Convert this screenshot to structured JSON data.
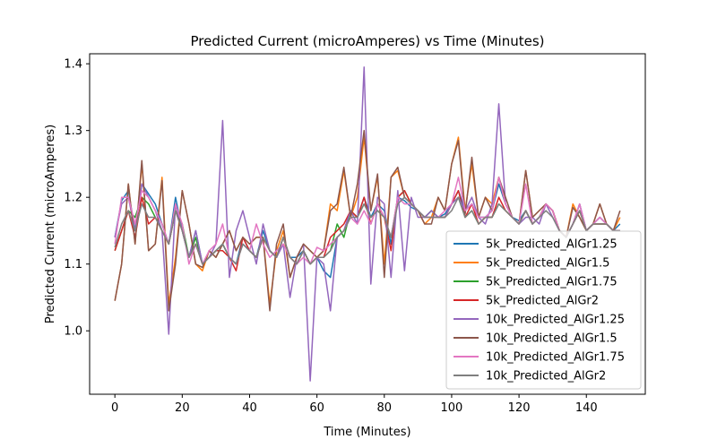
{
  "chart_data": {
    "type": "line",
    "title": "Predicted Current (microAmperes) vs Time (Minutes)",
    "xlabel": "Time (Minutes)",
    "ylabel": "Predicted Current (microAmperes)",
    "xlim": [
      -7.5,
      157.5
    ],
    "ylim": [
      0.905,
      1.415
    ],
    "xticks": [
      0,
      20,
      40,
      60,
      80,
      100,
      120,
      140
    ],
    "yticks": [
      1.0,
      1.1,
      1.2,
      1.3,
      1.4
    ],
    "grid": false,
    "legend": "lower-right",
    "x": [
      0,
      2,
      4,
      6,
      8,
      10,
      12,
      14,
      16,
      18,
      20,
      22,
      24,
      26,
      28,
      30,
      32,
      34,
      36,
      38,
      40,
      42,
      44,
      46,
      48,
      50,
      52,
      54,
      56,
      58,
      60,
      62,
      64,
      66,
      68,
      70,
      72,
      74,
      76,
      78,
      80,
      82,
      84,
      86,
      88,
      90,
      92,
      94,
      96,
      98,
      100,
      102,
      104,
      106,
      108,
      110,
      112,
      114,
      116,
      118,
      120,
      122,
      124,
      126,
      128,
      130,
      132,
      134,
      136,
      138,
      140,
      142,
      144,
      146,
      148,
      150
    ],
    "series": [
      {
        "name": "5k_Predicted_AlGr1.25",
        "color": "#1f77b4",
        "values": [
          1.14,
          1.195,
          1.21,
          1.15,
          1.22,
          1.205,
          1.19,
          1.16,
          1.13,
          1.2,
          1.15,
          1.11,
          1.15,
          1.1,
          1.11,
          1.12,
          1.13,
          1.11,
          1.1,
          1.14,
          1.12,
          1.11,
          1.15,
          1.12,
          1.11,
          1.14,
          1.11,
          1.11,
          1.12,
          1.1,
          1.11,
          1.09,
          1.08,
          1.14,
          1.15,
          1.18,
          1.17,
          1.2,
          1.17,
          1.19,
          1.18,
          1.13,
          1.2,
          1.195,
          1.185,
          1.18,
          1.17,
          1.18,
          1.17,
          1.175,
          1.19,
          1.21,
          1.18,
          1.19,
          1.17,
          1.17,
          1.18,
          1.22,
          1.19,
          1.17,
          1.165,
          1.18,
          1.16,
          1.17,
          1.19,
          1.18,
          1.15,
          1.14,
          1.16,
          1.19,
          1.15,
          1.16,
          1.17,
          1.16,
          1.15,
          1.16
        ]
      },
      {
        "name": "5k_Predicted_AlGr1.5",
        "color": "#ff7f0e",
        "values": [
          1.045,
          1.1,
          1.22,
          1.13,
          1.25,
          1.12,
          1.13,
          1.23,
          1.04,
          1.11,
          1.21,
          1.16,
          1.1,
          1.09,
          1.12,
          1.11,
          1.13,
          1.15,
          1.12,
          1.14,
          1.13,
          1.14,
          1.14,
          1.04,
          1.12,
          1.15,
          1.08,
          1.11,
          1.13,
          1.12,
          1.11,
          1.12,
          1.19,
          1.18,
          1.24,
          1.17,
          1.2,
          1.29,
          1.18,
          1.23,
          1.1,
          1.23,
          1.24,
          1.2,
          1.19,
          1.18,
          1.16,
          1.17,
          1.2,
          1.18,
          1.25,
          1.29,
          1.18,
          1.25,
          1.17,
          1.2,
          1.19,
          1.23,
          1.19,
          1.17,
          1.16,
          1.24,
          1.17,
          1.18,
          1.19,
          1.18,
          1.15,
          1.14,
          1.19,
          1.17,
          1.15,
          1.16,
          1.19,
          1.16,
          1.15,
          1.17
        ]
      },
      {
        "name": "5k_Predicted_AlGr1.75",
        "color": "#2ca02c",
        "values": [
          1.12,
          1.15,
          1.18,
          1.17,
          1.2,
          1.19,
          1.17,
          1.15,
          1.13,
          1.18,
          1.16,
          1.11,
          1.14,
          1.1,
          1.11,
          1.12,
          1.13,
          1.11,
          1.1,
          1.13,
          1.12,
          1.11,
          1.14,
          1.12,
          1.11,
          1.14,
          1.11,
          1.1,
          1.12,
          1.1,
          1.11,
          1.11,
          1.12,
          1.16,
          1.14,
          1.18,
          1.17,
          1.19,
          1.17,
          1.18,
          1.17,
          1.14,
          1.2,
          1.21,
          1.19,
          1.18,
          1.17,
          1.18,
          1.17,
          1.17,
          1.19,
          1.2,
          1.17,
          1.18,
          1.16,
          1.17,
          1.17,
          1.19,
          1.18,
          1.17,
          1.16,
          1.18,
          1.16,
          1.17,
          1.19,
          1.18,
          1.15,
          1.14,
          1.16,
          1.18,
          1.15,
          1.16,
          1.16,
          1.16,
          1.15,
          1.15
        ]
      },
      {
        "name": "5k_Predicted_AlGr2",
        "color": "#d62728",
        "values": [
          1.12,
          1.15,
          1.18,
          1.14,
          1.2,
          1.16,
          1.17,
          1.15,
          1.13,
          1.18,
          1.15,
          1.11,
          1.13,
          1.1,
          1.11,
          1.12,
          1.12,
          1.11,
          1.09,
          1.14,
          1.12,
          1.11,
          1.14,
          1.12,
          1.11,
          1.14,
          1.11,
          1.1,
          1.12,
          1.1,
          1.11,
          1.11,
          1.14,
          1.15,
          1.16,
          1.18,
          1.17,
          1.2,
          1.16,
          1.19,
          1.17,
          1.12,
          1.2,
          1.21,
          1.19,
          1.18,
          1.17,
          1.17,
          1.17,
          1.17,
          1.19,
          1.21,
          1.17,
          1.19,
          1.16,
          1.17,
          1.17,
          1.2,
          1.18,
          1.17,
          1.16,
          1.18,
          1.16,
          1.17,
          1.19,
          1.18,
          1.15,
          1.14,
          1.16,
          1.18,
          1.15,
          1.16,
          1.16,
          1.16,
          1.15,
          1.15
        ]
      },
      {
        "name": "10k_Predicted_AlGr1.25",
        "color": "#9467bd",
        "values": [
          1.14,
          1.19,
          1.2,
          1.15,
          1.22,
          1.2,
          1.18,
          1.15,
          0.995,
          1.19,
          1.15,
          1.11,
          1.15,
          1.1,
          1.11,
          1.13,
          1.315,
          1.08,
          1.15,
          1.18,
          1.14,
          1.1,
          1.16,
          1.12,
          1.11,
          1.13,
          1.05,
          1.11,
          1.13,
          0.925,
          1.11,
          1.1,
          1.03,
          1.14,
          1.15,
          1.18,
          1.16,
          1.395,
          1.07,
          1.2,
          1.19,
          1.08,
          1.21,
          1.09,
          1.2,
          1.17,
          1.17,
          1.18,
          1.17,
          1.17,
          1.19,
          1.2,
          1.18,
          1.2,
          1.17,
          1.16,
          1.19,
          1.34,
          1.19,
          1.17,
          1.16,
          1.17,
          1.17,
          1.16,
          1.19,
          1.17,
          1.15,
          1.14,
          1.16,
          1.19,
          1.15,
          1.16,
          1.17,
          1.16,
          1.15,
          1.15
        ]
      },
      {
        "name": "10k_Predicted_AlGr1.5",
        "color": "#8c564b",
        "values": [
          1.045,
          1.1,
          1.22,
          1.13,
          1.255,
          1.12,
          1.13,
          1.225,
          1.03,
          1.1,
          1.21,
          1.16,
          1.1,
          1.095,
          1.12,
          1.11,
          1.13,
          1.15,
          1.12,
          1.14,
          1.13,
          1.14,
          1.14,
          1.03,
          1.13,
          1.16,
          1.08,
          1.11,
          1.13,
          1.12,
          1.11,
          1.12,
          1.18,
          1.19,
          1.245,
          1.17,
          1.22,
          1.3,
          1.18,
          1.235,
          1.08,
          1.23,
          1.245,
          1.2,
          1.19,
          1.18,
          1.16,
          1.16,
          1.2,
          1.18,
          1.25,
          1.285,
          1.175,
          1.26,
          1.17,
          1.2,
          1.18,
          1.23,
          1.2,
          1.17,
          1.16,
          1.24,
          1.17,
          1.18,
          1.19,
          1.18,
          1.15,
          1.14,
          1.185,
          1.17,
          1.15,
          1.16,
          1.19,
          1.16,
          1.15,
          1.18
        ]
      },
      {
        "name": "10k_Predicted_AlGr1.75",
        "color": "#e377c2",
        "values": [
          1.13,
          1.2,
          1.2,
          1.16,
          1.21,
          1.2,
          1.18,
          1.16,
          1.13,
          1.19,
          1.16,
          1.1,
          1.13,
          1.1,
          1.12,
          1.13,
          1.16,
          1.11,
          1.1,
          1.13,
          1.12,
          1.16,
          1.13,
          1.11,
          1.12,
          1.13,
          1.11,
          1.1,
          1.11,
          1.1,
          1.125,
          1.12,
          1.13,
          1.14,
          1.15,
          1.17,
          1.16,
          1.18,
          1.16,
          1.19,
          1.17,
          1.14,
          1.2,
          1.19,
          1.19,
          1.18,
          1.17,
          1.17,
          1.17,
          1.18,
          1.19,
          1.23,
          1.18,
          1.19,
          1.17,
          1.17,
          1.18,
          1.23,
          1.19,
          1.17,
          1.16,
          1.22,
          1.16,
          1.17,
          1.19,
          1.18,
          1.15,
          1.14,
          1.16,
          1.19,
          1.15,
          1.16,
          1.17,
          1.16,
          1.15,
          1.15
        ]
      },
      {
        "name": "10k_Predicted_AlGr2",
        "color": "#7f7f7f",
        "values": [
          1.125,
          1.16,
          1.18,
          1.15,
          1.19,
          1.17,
          1.17,
          1.15,
          1.13,
          1.18,
          1.15,
          1.11,
          1.13,
          1.1,
          1.11,
          1.12,
          1.13,
          1.11,
          1.1,
          1.13,
          1.12,
          1.11,
          1.14,
          1.12,
          1.11,
          1.14,
          1.11,
          1.1,
          1.12,
          1.1,
          1.11,
          1.11,
          1.12,
          1.14,
          1.15,
          1.17,
          1.17,
          1.19,
          1.17,
          1.18,
          1.17,
          1.14,
          1.19,
          1.2,
          1.19,
          1.18,
          1.17,
          1.17,
          1.17,
          1.17,
          1.18,
          1.2,
          1.17,
          1.18,
          1.16,
          1.17,
          1.17,
          1.19,
          1.18,
          1.17,
          1.16,
          1.18,
          1.16,
          1.17,
          1.18,
          1.17,
          1.15,
          1.14,
          1.16,
          1.18,
          1.15,
          1.16,
          1.16,
          1.16,
          1.15,
          1.15
        ]
      }
    ]
  }
}
